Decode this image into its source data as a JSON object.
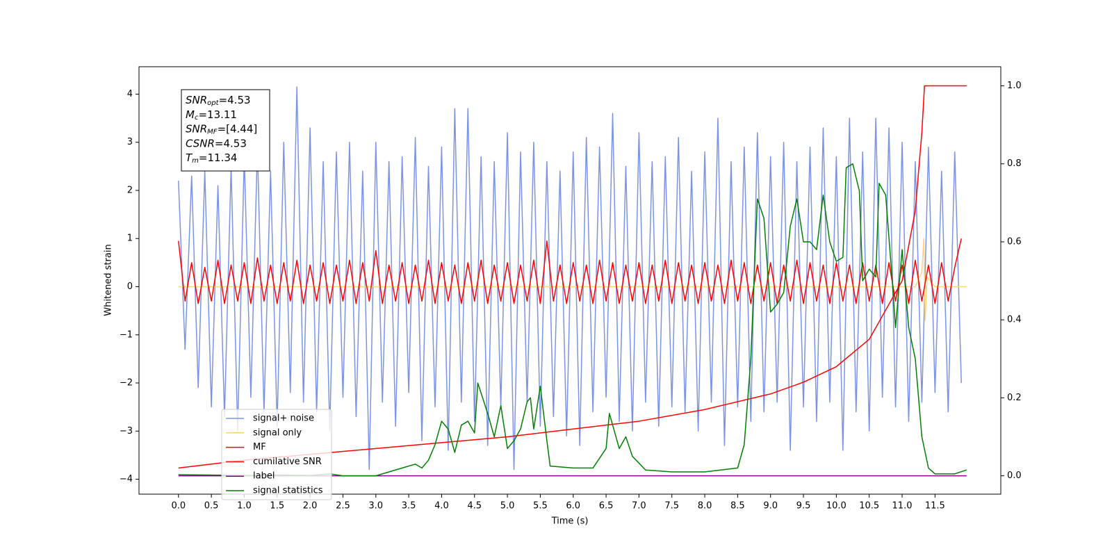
{
  "chart_data": {
    "type": "line",
    "xlabel": "Time (s)",
    "ylabel": "Whitened strain",
    "xlim": [
      -0.6,
      12.5
    ],
    "ylim": [
      -4.31,
      4.57
    ],
    "y2lim": [
      -0.047,
      1.049
    ],
    "xticks": [
      {
        "value": 0,
        "label": "0.0"
      },
      {
        "value": 0.5,
        "label": "0.5"
      },
      {
        "value": 1,
        "label": "1.0"
      },
      {
        "value": 1.5,
        "label": "1.5"
      },
      {
        "value": 2,
        "label": "2.0"
      },
      {
        "value": 2.5,
        "label": "2.5"
      },
      {
        "value": 3,
        "label": "3.0"
      },
      {
        "value": 3.5,
        "label": "3.5"
      },
      {
        "value": 4,
        "label": "4.0"
      },
      {
        "value": 4.5,
        "label": "4.5"
      },
      {
        "value": 5,
        "label": "5.0"
      },
      {
        "value": 5.5,
        "label": "5.5"
      },
      {
        "value": 6,
        "label": "6.0"
      },
      {
        "value": 6.5,
        "label": "6.5"
      },
      {
        "value": 7,
        "label": "7.0"
      },
      {
        "value": 7.5,
        "label": "7.5"
      },
      {
        "value": 8,
        "label": "8.0"
      },
      {
        "value": 8.5,
        "label": "8.5"
      },
      {
        "value": 9,
        "label": "9.0"
      },
      {
        "value": 9.5,
        "label": "9.5"
      },
      {
        "value": 10,
        "label": "10.0"
      },
      {
        "value": 10.5,
        "label": "10.5"
      },
      {
        "value": 11,
        "label": "11.0"
      },
      {
        "value": 11.5,
        "label": "11.5"
      }
    ],
    "yticks": [
      {
        "value": -4,
        "label": "−4"
      },
      {
        "value": -3,
        "label": "−3"
      },
      {
        "value": -2,
        "label": "−2"
      },
      {
        "value": -1,
        "label": "−1"
      },
      0,
      1,
      2,
      3,
      4
    ],
    "y2ticks": [
      {
        "value": 0,
        "label": "0.0"
      },
      {
        "value": 0.2,
        "label": "0.2"
      },
      {
        "value": 0.4,
        "label": "0.4"
      },
      {
        "value": 0.6,
        "label": "0.6"
      },
      {
        "value": 0.8,
        "label": "0.8"
      },
      {
        "value": 1,
        "label": "1.0"
      }
    ],
    "legend": "lower left",
    "annotations": [
      {
        "symbol": "SNR",
        "subscript": "opt",
        "text": "=4.53"
      },
      {
        "symbol": "M",
        "subscript": "c",
        "text": "=13.11"
      },
      {
        "symbol": "SNR",
        "subscript": "MF",
        "text": "=[4.44]"
      },
      {
        "symbol": "CSNR",
        "subscript": "",
        "text": "=4.53"
      },
      {
        "symbol": "T",
        "subscript": "m",
        "text": "=11.34"
      }
    ],
    "x": [
      0,
      0.1,
      0.2,
      0.3,
      0.4,
      0.5,
      0.6,
      0.7,
      0.8,
      0.9,
      1,
      1.1,
      1.2,
      1.3,
      1.4,
      1.5,
      1.6,
      1.7,
      1.8,
      1.9,
      2,
      2.1,
      2.2,
      2.3,
      2.4,
      2.5,
      2.6,
      2.7,
      2.8,
      2.9,
      3,
      3.1,
      3.2,
      3.3,
      3.4,
      3.5,
      3.6,
      3.7,
      3.8,
      3.9,
      4,
      4.1,
      4.2,
      4.3,
      4.4,
      4.5,
      4.6,
      4.7,
      4.8,
      4.9,
      5,
      5.1,
      5.2,
      5.3,
      5.4,
      5.5,
      5.6,
      5.7,
      5.8,
      5.9,
      6,
      6.1,
      6.2,
      6.3,
      6.4,
      6.5,
      6.6,
      6.7,
      6.8,
      6.9,
      7,
      7.1,
      7.2,
      7.3,
      7.4,
      7.5,
      7.6,
      7.7,
      7.8,
      7.9,
      8,
      8.1,
      8.2,
      8.3,
      8.4,
      8.5,
      8.6,
      8.7,
      8.8,
      8.9,
      9,
      9.1,
      9.2,
      9.3,
      9.4,
      9.5,
      9.6,
      9.7,
      9.8,
      9.9,
      10,
      10.1,
      10.2,
      10.3,
      10.4,
      10.5,
      10.6,
      10.7,
      10.8,
      10.9,
      11,
      11.1,
      11.2,
      11.3,
      11.4,
      11.5,
      11.6,
      11.7,
      11.8,
      11.9
    ],
    "series": [
      {
        "name": "signal+ noise",
        "color": "#7b93e6",
        "values": [
          2.2,
          -1.3,
          2.3,
          -2.1,
          2.4,
          -2.5,
          2.1,
          -2.7,
          2.5,
          -3.0,
          2.7,
          -2.3,
          2.9,
          -2.6,
          2.4,
          -2.9,
          3.0,
          -2.2,
          4.15,
          -2.4,
          3.3,
          -2.6,
          2.6,
          -3.0,
          2.8,
          -2.3,
          3.0,
          -2.7,
          2.4,
          -3.8,
          3.0,
          -2.4,
          2.6,
          -2.9,
          2.7,
          -2.2,
          3.1,
          -3.2,
          2.5,
          -2.5,
          2.9,
          -3.4,
          3.7,
          -2.4,
          3.7,
          -2.8,
          2.7,
          -3.3,
          2.6,
          -2.5,
          3.2,
          -3.8,
          2.8,
          -2.4,
          3.0,
          -2.9,
          2.6,
          -2.7,
          2.4,
          -3.1,
          2.8,
          -3.3,
          3.1,
          -2.6,
          2.9,
          -2.3,
          3.6,
          -2.8,
          2.5,
          -3.0,
          3.2,
          -2.4,
          2.6,
          -2.9,
          2.7,
          -2.5,
          3.1,
          -2.6,
          2.4,
          -3.0,
          2.8,
          -2.4,
          3.5,
          -3.3,
          2.6,
          -2.5,
          2.9,
          -2.8,
          3.2,
          -2.6,
          2.7,
          -2.4,
          3.0,
          -3.4,
          2.6,
          -2.5,
          2.9,
          -2.8,
          3.3,
          -2.4,
          2.7,
          -3.4,
          3.5,
          -2.6,
          2.8,
          -3.0,
          3.5,
          -2.3,
          3.3,
          -2.5,
          3.0,
          -2.8,
          2.6,
          -2.4,
          2.9,
          -2.2,
          2.4,
          -2.6,
          2.8,
          -2.0
        ]
      },
      {
        "name": "signal only",
        "color": "#ffd27f",
        "x": [
          0,
          11.2,
          11.3,
          11.33,
          11.35,
          11.38,
          11.5,
          11.98
        ],
        "values": [
          0,
          0,
          0.3,
          1.0,
          -0.7,
          0.2,
          0,
          0
        ]
      },
      {
        "name": "MF",
        "color": "#ff0000",
        "values": [
          0.95,
          -0.3,
          0.5,
          -0.35,
          0.4,
          -0.3,
          0.55,
          -0.35,
          0.45,
          -0.3,
          0.5,
          -0.35,
          0.6,
          -0.3,
          0.45,
          -0.35,
          0.5,
          -0.3,
          0.55,
          -0.35,
          0.45,
          -0.3,
          0.5,
          -0.35,
          0.45,
          -0.3,
          0.55,
          -0.35,
          0.5,
          -0.3,
          0.75,
          -0.35,
          0.45,
          -0.3,
          0.5,
          -0.35,
          0.45,
          -0.3,
          0.55,
          -0.35,
          0.5,
          -0.3,
          0.45,
          -0.35,
          0.5,
          -0.3,
          0.55,
          -0.35,
          0.45,
          -0.3,
          0.5,
          -0.35,
          0.45,
          -0.3,
          0.55,
          -0.35,
          0.95,
          -0.3,
          0.45,
          -0.35,
          0.5,
          -0.3,
          0.45,
          -0.35,
          0.55,
          -0.3,
          0.5,
          -0.35,
          0.45,
          -0.3,
          0.5,
          -0.35,
          0.45,
          -0.3,
          0.55,
          -0.35,
          0.5,
          -0.3,
          0.45,
          -0.35,
          0.5,
          -0.3,
          0.45,
          -0.35,
          0.55,
          -0.3,
          0.5,
          -0.35,
          0.45,
          -0.3,
          0.5,
          -0.35,
          0.45,
          -0.3,
          0.55,
          -0.35,
          0.5,
          -0.3,
          0.45,
          -0.35,
          0.5,
          -0.3,
          0.45,
          -0.35,
          0.5,
          -0.3,
          0.45,
          -0.35,
          0.5,
          -0.3,
          0.45,
          -0.35,
          0.55,
          -0.3,
          0.45,
          -0.35,
          0.5,
          -0.3,
          0.4,
          1.0
        ]
      },
      {
        "name": "cumilative SNR",
        "color": "#ff0000",
        "axis": "y2",
        "x": [
          0,
          1,
          2,
          3,
          4,
          5,
          6,
          7,
          8,
          9,
          9.5,
          10,
          10.5,
          11,
          11.2,
          11.3,
          11.34,
          11.98
        ],
        "values": [
          0.02,
          0.04,
          0.055,
          0.07,
          0.085,
          0.1,
          0.12,
          0.14,
          0.17,
          0.21,
          0.24,
          0.28,
          0.35,
          0.5,
          0.68,
          0.88,
          1.0,
          1.0
        ]
      },
      {
        "name": "label",
        "color": "#800080",
        "axis": "y2",
        "x": [
          0,
          11.98
        ],
        "values": [
          0,
          0
        ]
      },
      {
        "name": "signal statistics",
        "color": "#008000",
        "axis": "y2",
        "x": [
          0,
          0.5,
          1,
          1.5,
          2,
          2.3,
          2.5,
          3,
          3.2,
          3.4,
          3.6,
          3.7,
          3.8,
          3.9,
          4.0,
          4.1,
          4.2,
          4.3,
          4.4,
          4.5,
          4.55,
          4.7,
          4.8,
          4.9,
          5.0,
          5.1,
          5.2,
          5.3,
          5.35,
          5.4,
          5.5,
          5.6,
          5.65,
          6.0,
          6.3,
          6.5,
          6.55,
          6.7,
          6.8,
          6.9,
          7.1,
          7.5,
          8.0,
          8.5,
          8.6,
          8.7,
          8.8,
          8.9,
          9.0,
          9.1,
          9.2,
          9.3,
          9.4,
          9.5,
          9.6,
          9.7,
          9.8,
          9.9,
          10.0,
          10.1,
          10.15,
          10.25,
          10.35,
          10.4,
          10.5,
          10.6,
          10.65,
          10.75,
          10.85,
          10.9,
          11.0,
          11.1,
          11.2,
          11.3,
          11.4,
          11.5,
          11.8,
          11.98
        ],
        "values": [
          0.003,
          0.002,
          0.001,
          0.002,
          0.001,
          0.005,
          0.0,
          0.0,
          0.01,
          0.02,
          0.03,
          0.02,
          0.04,
          0.08,
          0.14,
          0.12,
          0.06,
          0.13,
          0.14,
          0.11,
          0.238,
          0.16,
          0.1,
          0.18,
          0.07,
          0.09,
          0.12,
          0.19,
          0.2,
          0.12,
          0.23,
          0.09,
          0.025,
          0.02,
          0.02,
          0.07,
          0.16,
          0.07,
          0.1,
          0.05,
          0.015,
          0.01,
          0.01,
          0.02,
          0.08,
          0.3,
          0.71,
          0.66,
          0.42,
          0.44,
          0.47,
          0.64,
          0.71,
          0.6,
          0.6,
          0.58,
          0.72,
          0.6,
          0.55,
          0.56,
          0.79,
          0.8,
          0.73,
          0.5,
          0.53,
          0.51,
          0.75,
          0.72,
          0.5,
          0.38,
          0.58,
          0.38,
          0.3,
          0.1,
          0.02,
          0.005,
          0.005,
          0.015
        ]
      }
    ]
  }
}
